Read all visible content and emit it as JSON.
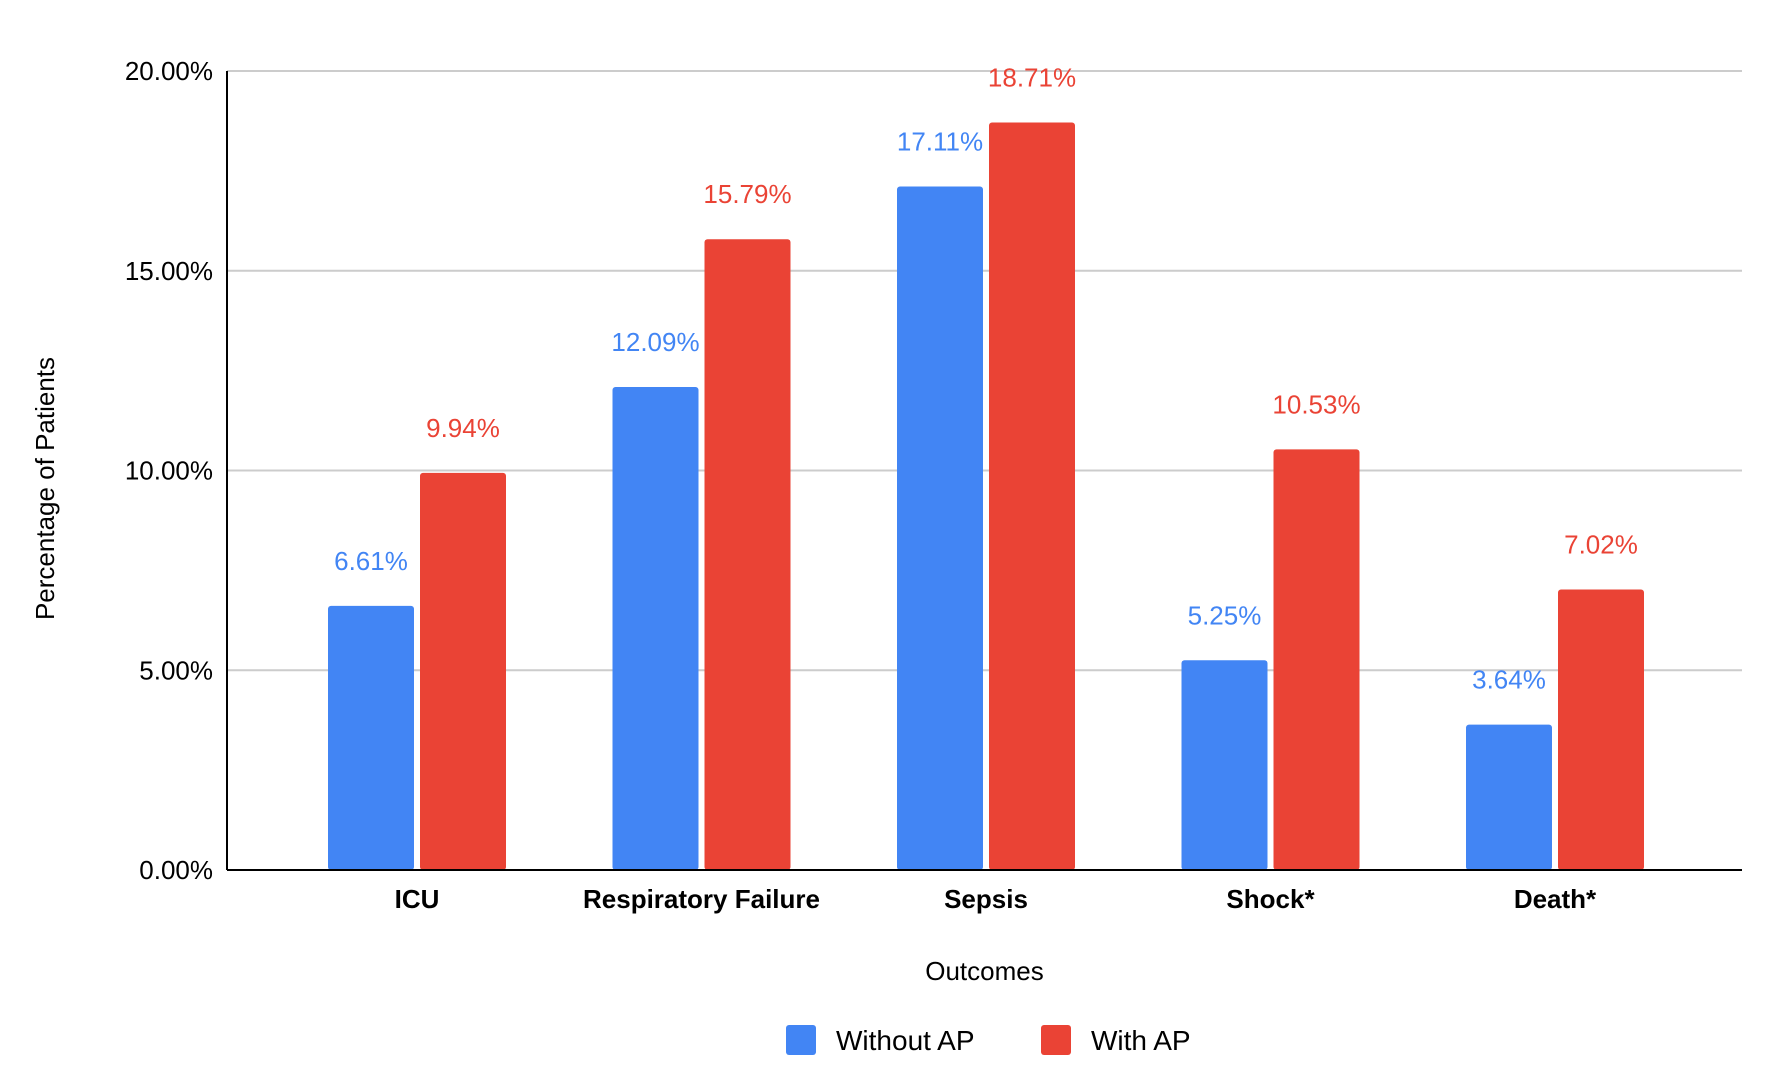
{
  "chart_data": {
    "type": "bar",
    "title": "",
    "xlabel": "Outcomes",
    "ylabel": "Percentage of Patients",
    "ylim": [
      0,
      20
    ],
    "y_ticks": [
      0,
      5,
      10,
      15,
      20
    ],
    "y_tick_labels": [
      "0.00%",
      "5.00%",
      "10.00%",
      "15.00%",
      "20.00%"
    ],
    "grid": "horizontal",
    "legend_position": "bottom",
    "categories": [
      "ICU",
      "Respiratory Failure",
      "Sepsis",
      "Shock*",
      "Death*"
    ],
    "series": [
      {
        "name": "Without AP",
        "color": "#4285F4",
        "values": [
          6.61,
          12.09,
          17.11,
          5.25,
          3.64
        ],
        "labels": [
          "6.61%",
          "12.09%",
          "17.11%",
          "5.25%",
          "3.64%"
        ]
      },
      {
        "name": "With AP",
        "color": "#EA4335",
        "values": [
          9.94,
          15.79,
          18.71,
          10.53,
          7.02
        ],
        "labels": [
          "9.94%",
          "15.79%",
          "18.71%",
          "10.53%",
          "7.02%"
        ]
      }
    ]
  }
}
